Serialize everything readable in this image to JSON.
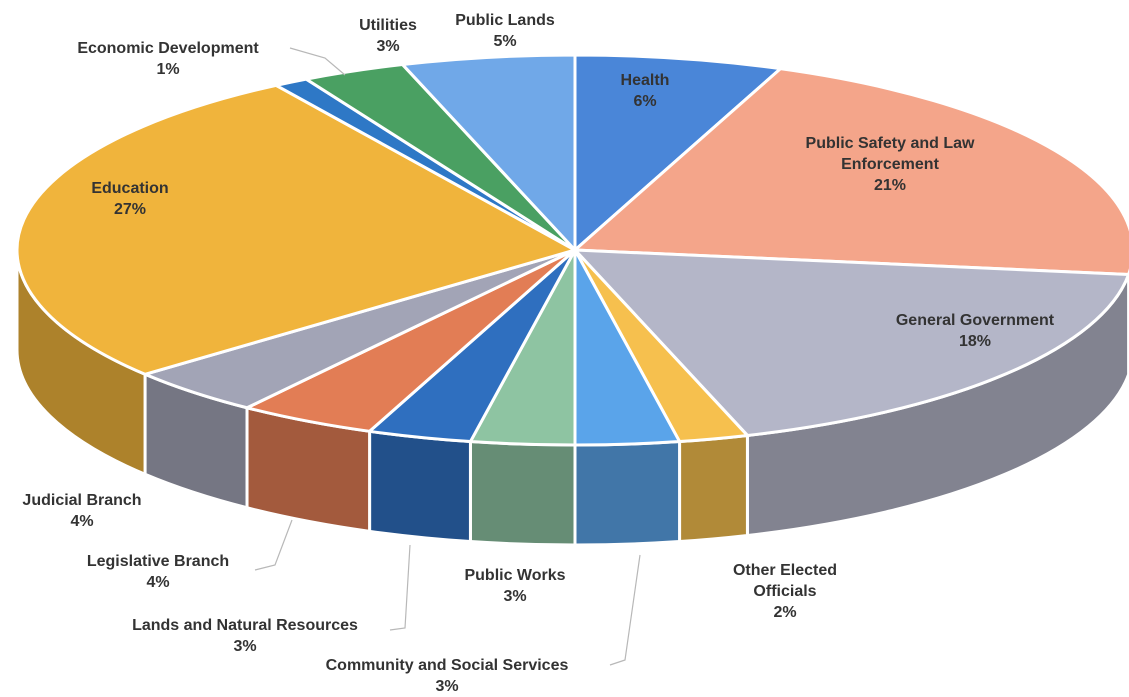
{
  "chart_data": {
    "type": "pie",
    "categories": [
      "Health",
      "Public Safety and Law Enforcement",
      "General Government",
      "Other Elected Officials",
      "Community and Social Services",
      "Public Works",
      "Lands and Natural Resources",
      "Legislative Branch",
      "Judicial Branch",
      "Education",
      "Economic Development",
      "Utilities",
      "Public Lands"
    ],
    "values": [
      6,
      21,
      18,
      2,
      3,
      3,
      3,
      4,
      4,
      27,
      1,
      3,
      5
    ],
    "value_labels": [
      "6%",
      "21%",
      "18%",
      "2%",
      "3%",
      "3%",
      "3%",
      "4%",
      "4%",
      "27%",
      "1%",
      "3%",
      "5%"
    ],
    "colors": [
      "#4a86d8",
      "#f4a58a",
      "#b4b6c8",
      "#f6c04e",
      "#5aa4ea",
      "#8ec4a2",
      "#2f6fbf",
      "#e27d55",
      "#a2a4b6",
      "#f0b43c",
      "#2e78c6",
      "#4aa062",
      "#70a8e8"
    ]
  }
}
